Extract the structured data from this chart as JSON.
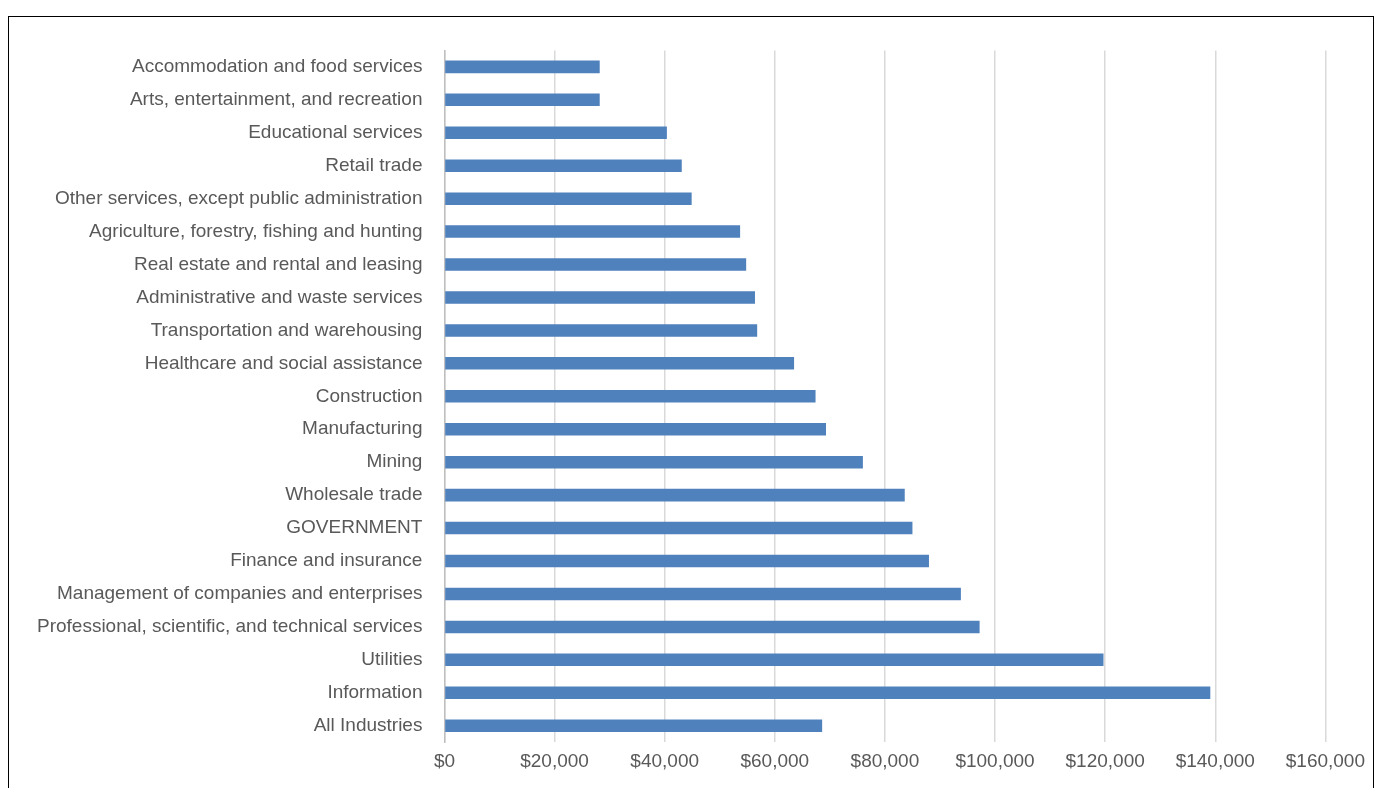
{
  "chart_data": {
    "type": "bar",
    "orientation": "horizontal",
    "categories": [
      "Accommodation and food services",
      "Arts, entertainment, and recreation",
      "Educational services",
      "Retail trade",
      "Other services, except public administration",
      "Agriculture, forestry, fishing and hunting",
      "Real estate and rental and leasing",
      "Administrative and waste services",
      "Transportation and warehousing",
      "Healthcare and social assistance",
      "Construction",
      "Manufacturing",
      "Mining",
      "Wholesale trade",
      "GOVERNMENT",
      "Finance and insurance",
      "Management of companies and enterprises",
      "Professional, scientific, and technical services",
      "Utilities",
      "Information",
      "All Industries"
    ],
    "values": [
      28200,
      28200,
      40400,
      43100,
      44900,
      53700,
      54800,
      56400,
      56800,
      63500,
      67400,
      69300,
      76000,
      83600,
      85000,
      88000,
      93800,
      97200,
      119700,
      139100,
      68600
    ],
    "color": "#4f81bd",
    "xlim": [
      0,
      160000
    ],
    "xticks": [
      {
        "value": 0,
        "label": "$0"
      },
      {
        "value": 20000,
        "label": "$20,000"
      },
      {
        "value": 40000,
        "label": "$40,000"
      },
      {
        "value": 60000,
        "label": "$60,000"
      },
      {
        "value": 80000,
        "label": "$80,000"
      },
      {
        "value": 100000,
        "label": "$100,000"
      },
      {
        "value": 120000,
        "label": "$120,000"
      },
      {
        "value": 140000,
        "label": "$140,000"
      },
      {
        "value": 160000,
        "label": "$160,000"
      }
    ],
    "grid": "x"
  }
}
